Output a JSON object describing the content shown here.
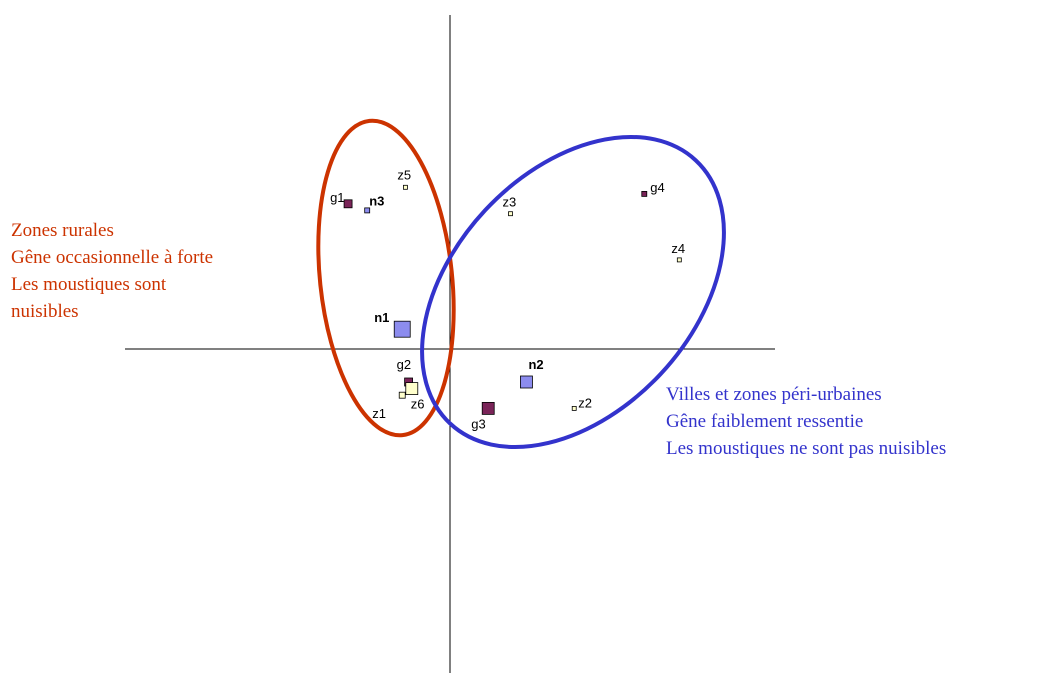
{
  "colors": {
    "rural": "#cc3300",
    "urban": "#3333cc",
    "axis": "#000000",
    "marker_purple": "#7a2458",
    "marker_blue": "#8c8cee",
    "marker_yellow": "#ffffcc"
  },
  "annotations": {
    "rural": {
      "lines": [
        "Zones rurales",
        "Gêne occasionnelle à forte",
        "Les moustiques sont",
        "nuisibles"
      ]
    },
    "urban": {
      "lines": [
        "Villes et zones péri-urbaines",
        "Gêne faiblement ressentie",
        "Les moustiques ne sont pas nuisibles"
      ]
    }
  },
  "chart_data": {
    "type": "scatter",
    "title": "",
    "xlabel": "",
    "ylabel": "",
    "xlim": [
      -1.0,
      1.0
    ],
    "ylim": [
      -1.0,
      1.0
    ],
    "grid": false,
    "axes": "crossing at origin, no ticks",
    "points": [
      {
        "label": "g1",
        "x": -0.32,
        "y": 0.44,
        "marker": "square",
        "size": 8,
        "color": "marker_purple",
        "bold": false
      },
      {
        "label": "n3",
        "x": -0.26,
        "y": 0.42,
        "marker": "square",
        "size": 5,
        "color": "marker_blue",
        "bold": true
      },
      {
        "label": "z5",
        "x": -0.14,
        "y": 0.49,
        "marker": "square",
        "size": 4,
        "color": "marker_yellow",
        "bold": false
      },
      {
        "label": "n1",
        "x": -0.15,
        "y": 0.06,
        "marker": "square",
        "size": 16,
        "color": "marker_blue",
        "bold": true
      },
      {
        "label": "g2",
        "x": -0.13,
        "y": -0.1,
        "marker": "square",
        "size": 8,
        "color": "marker_purple",
        "bold": false
      },
      {
        "label": "z6",
        "x": -0.12,
        "y": -0.12,
        "marker": "square",
        "size": 12,
        "color": "marker_yellow",
        "bold": false
      },
      {
        "label": "z1",
        "x": -0.15,
        "y": -0.14,
        "marker": "square",
        "size": 6,
        "color": "marker_yellow",
        "bold": false
      },
      {
        "label": "z3",
        "x": 0.19,
        "y": 0.41,
        "marker": "square",
        "size": 4,
        "color": "marker_yellow",
        "bold": false
      },
      {
        "label": "g4",
        "x": 0.61,
        "y": 0.47,
        "marker": "square",
        "size": 5,
        "color": "marker_purple",
        "bold": false
      },
      {
        "label": "z4",
        "x": 0.72,
        "y": 0.27,
        "marker": "square",
        "size": 4,
        "color": "marker_yellow",
        "bold": false
      },
      {
        "label": "n2",
        "x": 0.24,
        "y": -0.1,
        "marker": "square",
        "size": 12,
        "color": "marker_blue",
        "bold": true
      },
      {
        "label": "g3",
        "x": 0.12,
        "y": -0.18,
        "marker": "square",
        "size": 12,
        "color": "marker_purple",
        "bold": false
      },
      {
        "label": "z2",
        "x": 0.39,
        "y": -0.18,
        "marker": "square",
        "size": 4,
        "color": "marker_yellow",
        "bold": false
      }
    ],
    "groups": [
      {
        "id": "rural",
        "color": "rural",
        "members": [
          "g1",
          "n3",
          "z5",
          "n1",
          "g2",
          "z6",
          "z1"
        ]
      },
      {
        "id": "urban",
        "color": "urban",
        "members": [
          "z3",
          "g4",
          "z4",
          "n2",
          "g3",
          "z2"
        ]
      }
    ]
  }
}
